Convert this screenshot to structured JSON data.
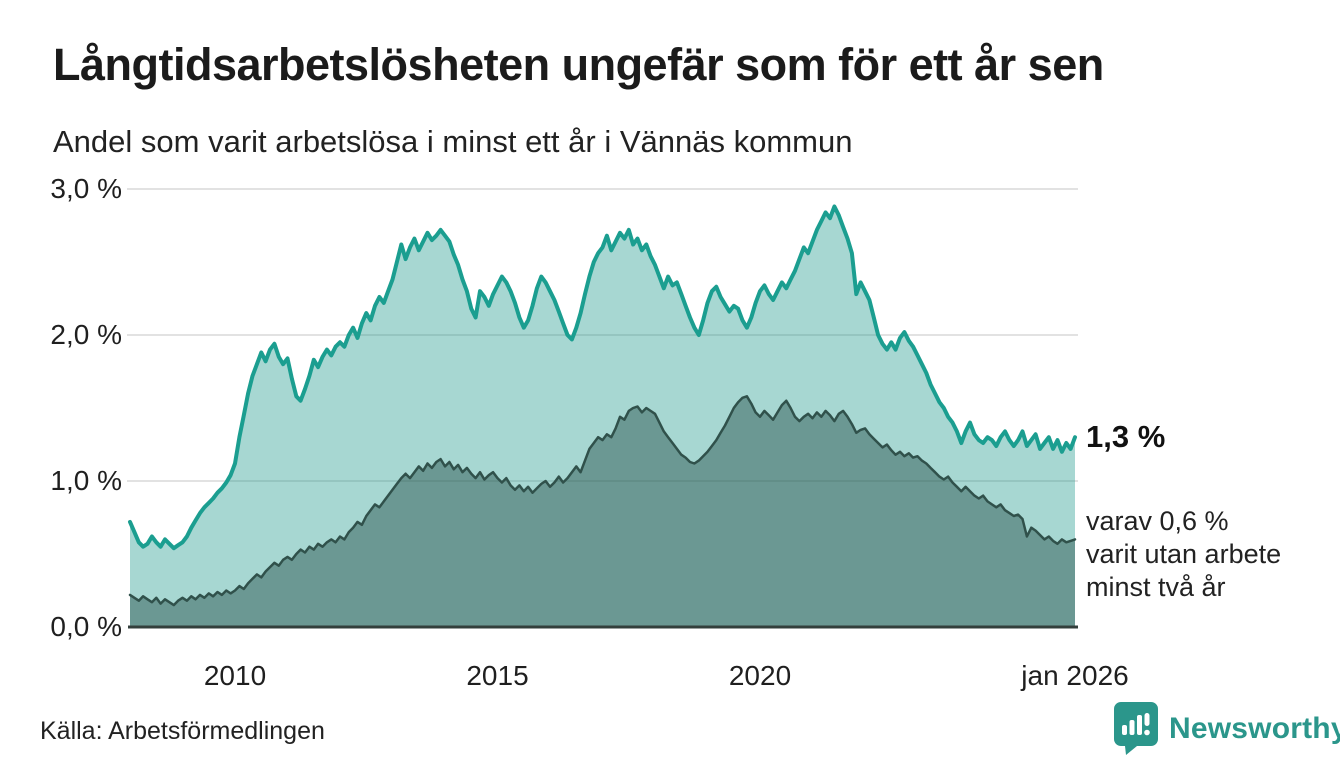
{
  "header": {
    "title": "Långtidsarbetslösheten ungefär som för ett år sen",
    "subtitle": "Andel som varit arbetslösa i minst ett år i Vännäs kommun"
  },
  "chart_data": {
    "type": "area",
    "title": "Långtidsarbetslösheten ungefär som för ett år sen",
    "subtitle": "Andel som varit arbetslösa i minst ett år i Vännäs kommun",
    "unit": "%",
    "frequency": "monthly",
    "x_axis": {
      "start_year": 2008.0,
      "end_year": 2026.0,
      "ticks": [
        {
          "label": "2010",
          "year": 2010
        },
        {
          "label": "2015",
          "year": 2015
        },
        {
          "label": "2020",
          "year": 2020
        },
        {
          "label": "jan 2026",
          "year": 2026
        }
      ]
    },
    "y_axis": {
      "range": [
        0,
        3
      ],
      "ticks": [
        {
          "label": "0,0 %",
          "value": 0
        },
        {
          "label": "1,0 %",
          "value": 1
        },
        {
          "label": "2,0 %",
          "value": 2
        },
        {
          "label": "3,0 %",
          "value": 3
        }
      ],
      "gridline_color": "#d9d9d9",
      "baseline_color": "#333f3c"
    },
    "series": [
      {
        "name": "Andel som varit arbetslösa i minst ett år",
        "line_color": "#1b9e90",
        "fill_color": "rgba(23,150,137,0.38)",
        "line_width": 4,
        "last_value": 1.3,
        "values": [
          0.72,
          0.65,
          0.58,
          0.55,
          0.57,
          0.62,
          0.58,
          0.55,
          0.6,
          0.57,
          0.54,
          0.56,
          0.58,
          0.62,
          0.68,
          0.73,
          0.78,
          0.82,
          0.85,
          0.88,
          0.92,
          0.95,
          0.99,
          1.04,
          1.12,
          1.3,
          1.45,
          1.6,
          1.72,
          1.8,
          1.88,
          1.82,
          1.9,
          1.94,
          1.85,
          1.8,
          1.84,
          1.7,
          1.58,
          1.55,
          1.63,
          1.72,
          1.83,
          1.78,
          1.85,
          1.9,
          1.86,
          1.92,
          1.95,
          1.92,
          2.0,
          2.05,
          1.98,
          2.08,
          2.15,
          2.1,
          2.2,
          2.26,
          2.22,
          2.3,
          2.38,
          2.5,
          2.62,
          2.52,
          2.6,
          2.66,
          2.58,
          2.64,
          2.7,
          2.65,
          2.68,
          2.72,
          2.68,
          2.64,
          2.55,
          2.48,
          2.38,
          2.3,
          2.18,
          2.12,
          2.3,
          2.26,
          2.2,
          2.28,
          2.34,
          2.4,
          2.36,
          2.3,
          2.22,
          2.12,
          2.05,
          2.1,
          2.2,
          2.32,
          2.4,
          2.36,
          2.3,
          2.24,
          2.16,
          2.08,
          2.0,
          1.97,
          2.05,
          2.15,
          2.28,
          2.4,
          2.5,
          2.56,
          2.6,
          2.68,
          2.58,
          2.64,
          2.7,
          2.66,
          2.72,
          2.62,
          2.66,
          2.58,
          2.62,
          2.54,
          2.48,
          2.4,
          2.32,
          2.4,
          2.34,
          2.36,
          2.28,
          2.2,
          2.12,
          2.05,
          2.0,
          2.1,
          2.22,
          2.3,
          2.33,
          2.26,
          2.21,
          2.16,
          2.2,
          2.18,
          2.1,
          2.05,
          2.12,
          2.22,
          2.3,
          2.34,
          2.28,
          2.24,
          2.3,
          2.36,
          2.32,
          2.38,
          2.44,
          2.52,
          2.6,
          2.56,
          2.64,
          2.72,
          2.78,
          2.84,
          2.8,
          2.88,
          2.82,
          2.74,
          2.66,
          2.56,
          2.28,
          2.36,
          2.3,
          2.24,
          2.12,
          2.0,
          1.94,
          1.9,
          1.95,
          1.9,
          1.98,
          2.02,
          1.96,
          1.92,
          1.86,
          1.8,
          1.74,
          1.66,
          1.6,
          1.54,
          1.5,
          1.44,
          1.4,
          1.34,
          1.26,
          1.34,
          1.4,
          1.32,
          1.28,
          1.26,
          1.3,
          1.28,
          1.24,
          1.3,
          1.34,
          1.28,
          1.24,
          1.28,
          1.34,
          1.24,
          1.28,
          1.32,
          1.22,
          1.26,
          1.3,
          1.22,
          1.28,
          1.2,
          1.26,
          1.22,
          1.3
        ]
      },
      {
        "name": "varav varit utan arbete minst två år",
        "line_color": "#30514b",
        "fill_color": "rgba(32,72,66,0.44)",
        "line_width": 2.5,
        "last_value": 0.6,
        "values": [
          0.22,
          0.2,
          0.18,
          0.21,
          0.19,
          0.17,
          0.2,
          0.16,
          0.19,
          0.17,
          0.15,
          0.18,
          0.2,
          0.18,
          0.21,
          0.19,
          0.22,
          0.2,
          0.23,
          0.21,
          0.24,
          0.22,
          0.25,
          0.23,
          0.25,
          0.28,
          0.26,
          0.3,
          0.33,
          0.36,
          0.34,
          0.38,
          0.41,
          0.44,
          0.42,
          0.46,
          0.48,
          0.46,
          0.5,
          0.53,
          0.51,
          0.55,
          0.53,
          0.57,
          0.55,
          0.58,
          0.6,
          0.58,
          0.62,
          0.6,
          0.65,
          0.68,
          0.72,
          0.7,
          0.76,
          0.8,
          0.84,
          0.82,
          0.86,
          0.9,
          0.94,
          0.98,
          1.02,
          1.05,
          1.02,
          1.06,
          1.1,
          1.07,
          1.12,
          1.09,
          1.13,
          1.15,
          1.1,
          1.13,
          1.08,
          1.11,
          1.06,
          1.09,
          1.05,
          1.02,
          1.06,
          1.01,
          1.04,
          1.06,
          1.02,
          0.99,
          1.02,
          0.97,
          0.94,
          0.97,
          0.93,
          0.96,
          0.92,
          0.95,
          0.98,
          1.0,
          0.96,
          0.99,
          1.03,
          0.99,
          1.02,
          1.06,
          1.1,
          1.06,
          1.14,
          1.22,
          1.26,
          1.3,
          1.28,
          1.32,
          1.3,
          1.36,
          1.44,
          1.42,
          1.48,
          1.5,
          1.51,
          1.47,
          1.5,
          1.48,
          1.46,
          1.4,
          1.34,
          1.3,
          1.26,
          1.22,
          1.18,
          1.16,
          1.13,
          1.12,
          1.14,
          1.17,
          1.2,
          1.24,
          1.28,
          1.33,
          1.38,
          1.44,
          1.5,
          1.54,
          1.57,
          1.58,
          1.53,
          1.47,
          1.44,
          1.48,
          1.45,
          1.42,
          1.47,
          1.52,
          1.55,
          1.5,
          1.44,
          1.41,
          1.44,
          1.46,
          1.43,
          1.47,
          1.44,
          1.48,
          1.45,
          1.41,
          1.46,
          1.48,
          1.44,
          1.39,
          1.33,
          1.35,
          1.36,
          1.32,
          1.29,
          1.26,
          1.23,
          1.25,
          1.21,
          1.18,
          1.2,
          1.17,
          1.19,
          1.16,
          1.17,
          1.14,
          1.12,
          1.09,
          1.06,
          1.03,
          1.01,
          1.03,
          0.99,
          0.96,
          0.93,
          0.96,
          0.93,
          0.9,
          0.88,
          0.9,
          0.86,
          0.84,
          0.82,
          0.84,
          0.8,
          0.78,
          0.76,
          0.77,
          0.74,
          0.62,
          0.68,
          0.66,
          0.63,
          0.6,
          0.62,
          0.59,
          0.57,
          0.6,
          0.58,
          0.59,
          0.6
        ]
      }
    ],
    "annotations": {
      "end_label": "1,3 %",
      "sub_label_lines": [
        "varav 0,6 %",
        "varit utan arbete",
        "minst två år"
      ]
    },
    "legend_position": "none",
    "grid": "horizontal-only"
  },
  "source": {
    "label": "Källa: Arbetsförmedlingen"
  },
  "branding": {
    "name": "Newsworthy",
    "color": "#2b968b",
    "logo_icon": "speech-bubble-bar-chart"
  }
}
